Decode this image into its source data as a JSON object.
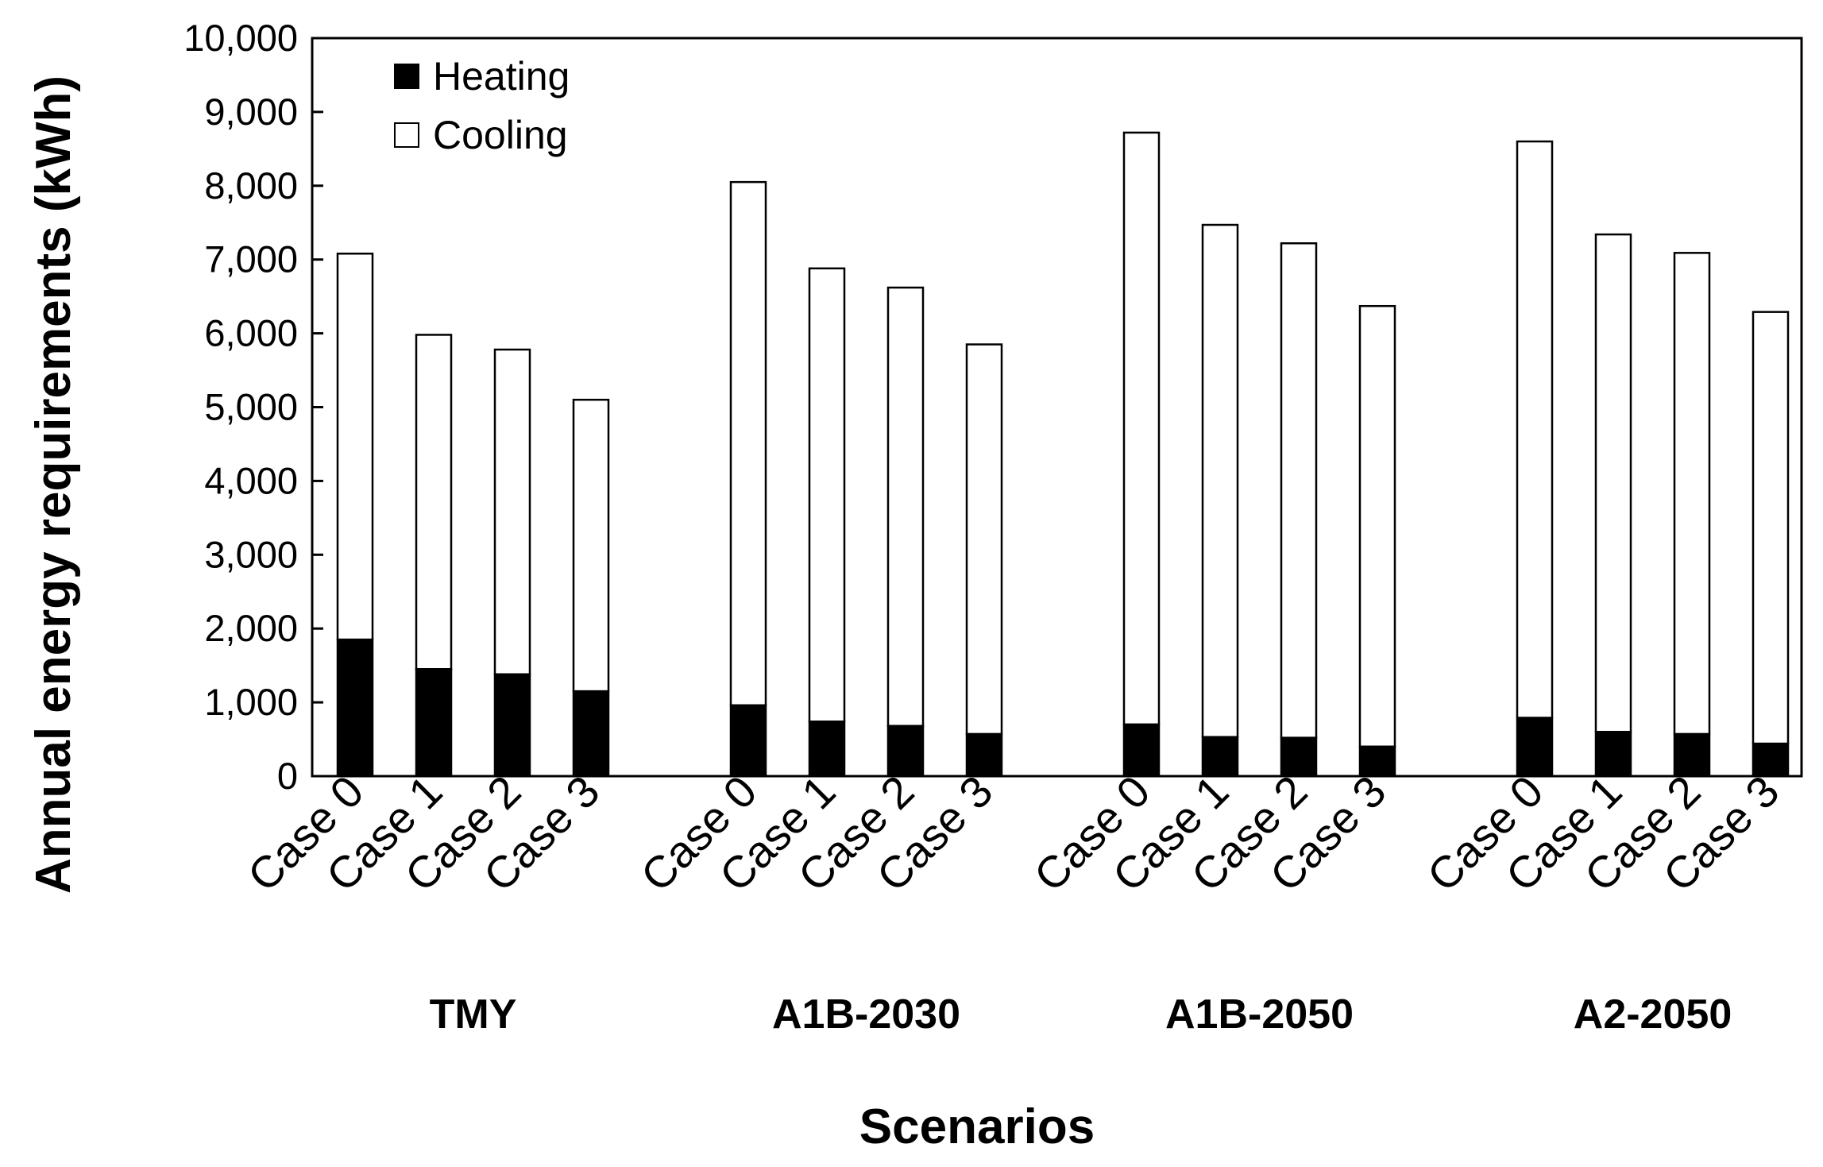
{
  "chart_data": {
    "type": "bar",
    "stacked": true,
    "ylabel": "Annual energy requirements (kWh)",
    "xlabel": "Scenarios",
    "ylim": [
      0,
      10000
    ],
    "yticks": [
      0,
      1000,
      2000,
      3000,
      4000,
      5000,
      6000,
      7000,
      8000,
      9000,
      10000
    ],
    "ytick_labels": [
      "0",
      "1,000",
      "2,000",
      "3,000",
      "4,000",
      "5,000",
      "6,000",
      "7,000",
      "8,000",
      "9,000",
      "10,000"
    ],
    "groups": [
      {
        "name": "TMY",
        "cases": [
          "Case 0",
          "Case 1",
          "Case 2",
          "Case 3"
        ],
        "heating": [
          1850,
          1450,
          1380,
          1150
        ],
        "total": [
          7080,
          5980,
          5780,
          5100
        ]
      },
      {
        "name": "A1B-2030",
        "cases": [
          "Case 0",
          "Case 1",
          "Case 2",
          "Case 3"
        ],
        "heating": [
          960,
          740,
          680,
          570
        ],
        "total": [
          8050,
          6880,
          6620,
          5850
        ]
      },
      {
        "name": "A1B-2050",
        "cases": [
          "Case 0",
          "Case 1",
          "Case 2",
          "Case 3"
        ],
        "heating": [
          700,
          530,
          520,
          400
        ],
        "total": [
          8720,
          7470,
          7220,
          6370
        ]
      },
      {
        "name": "A2-2050",
        "cases": [
          "Case 0",
          "Case 1",
          "Case 2",
          "Case 3"
        ],
        "heating": [
          790,
          600,
          570,
          440
        ],
        "total": [
          8600,
          7340,
          7090,
          6290
        ]
      }
    ],
    "series": [
      {
        "name": "Heating",
        "color": "#000000"
      },
      {
        "name": "Cooling",
        "color": "#ffffff"
      }
    ],
    "legend_position": "top-left"
  }
}
